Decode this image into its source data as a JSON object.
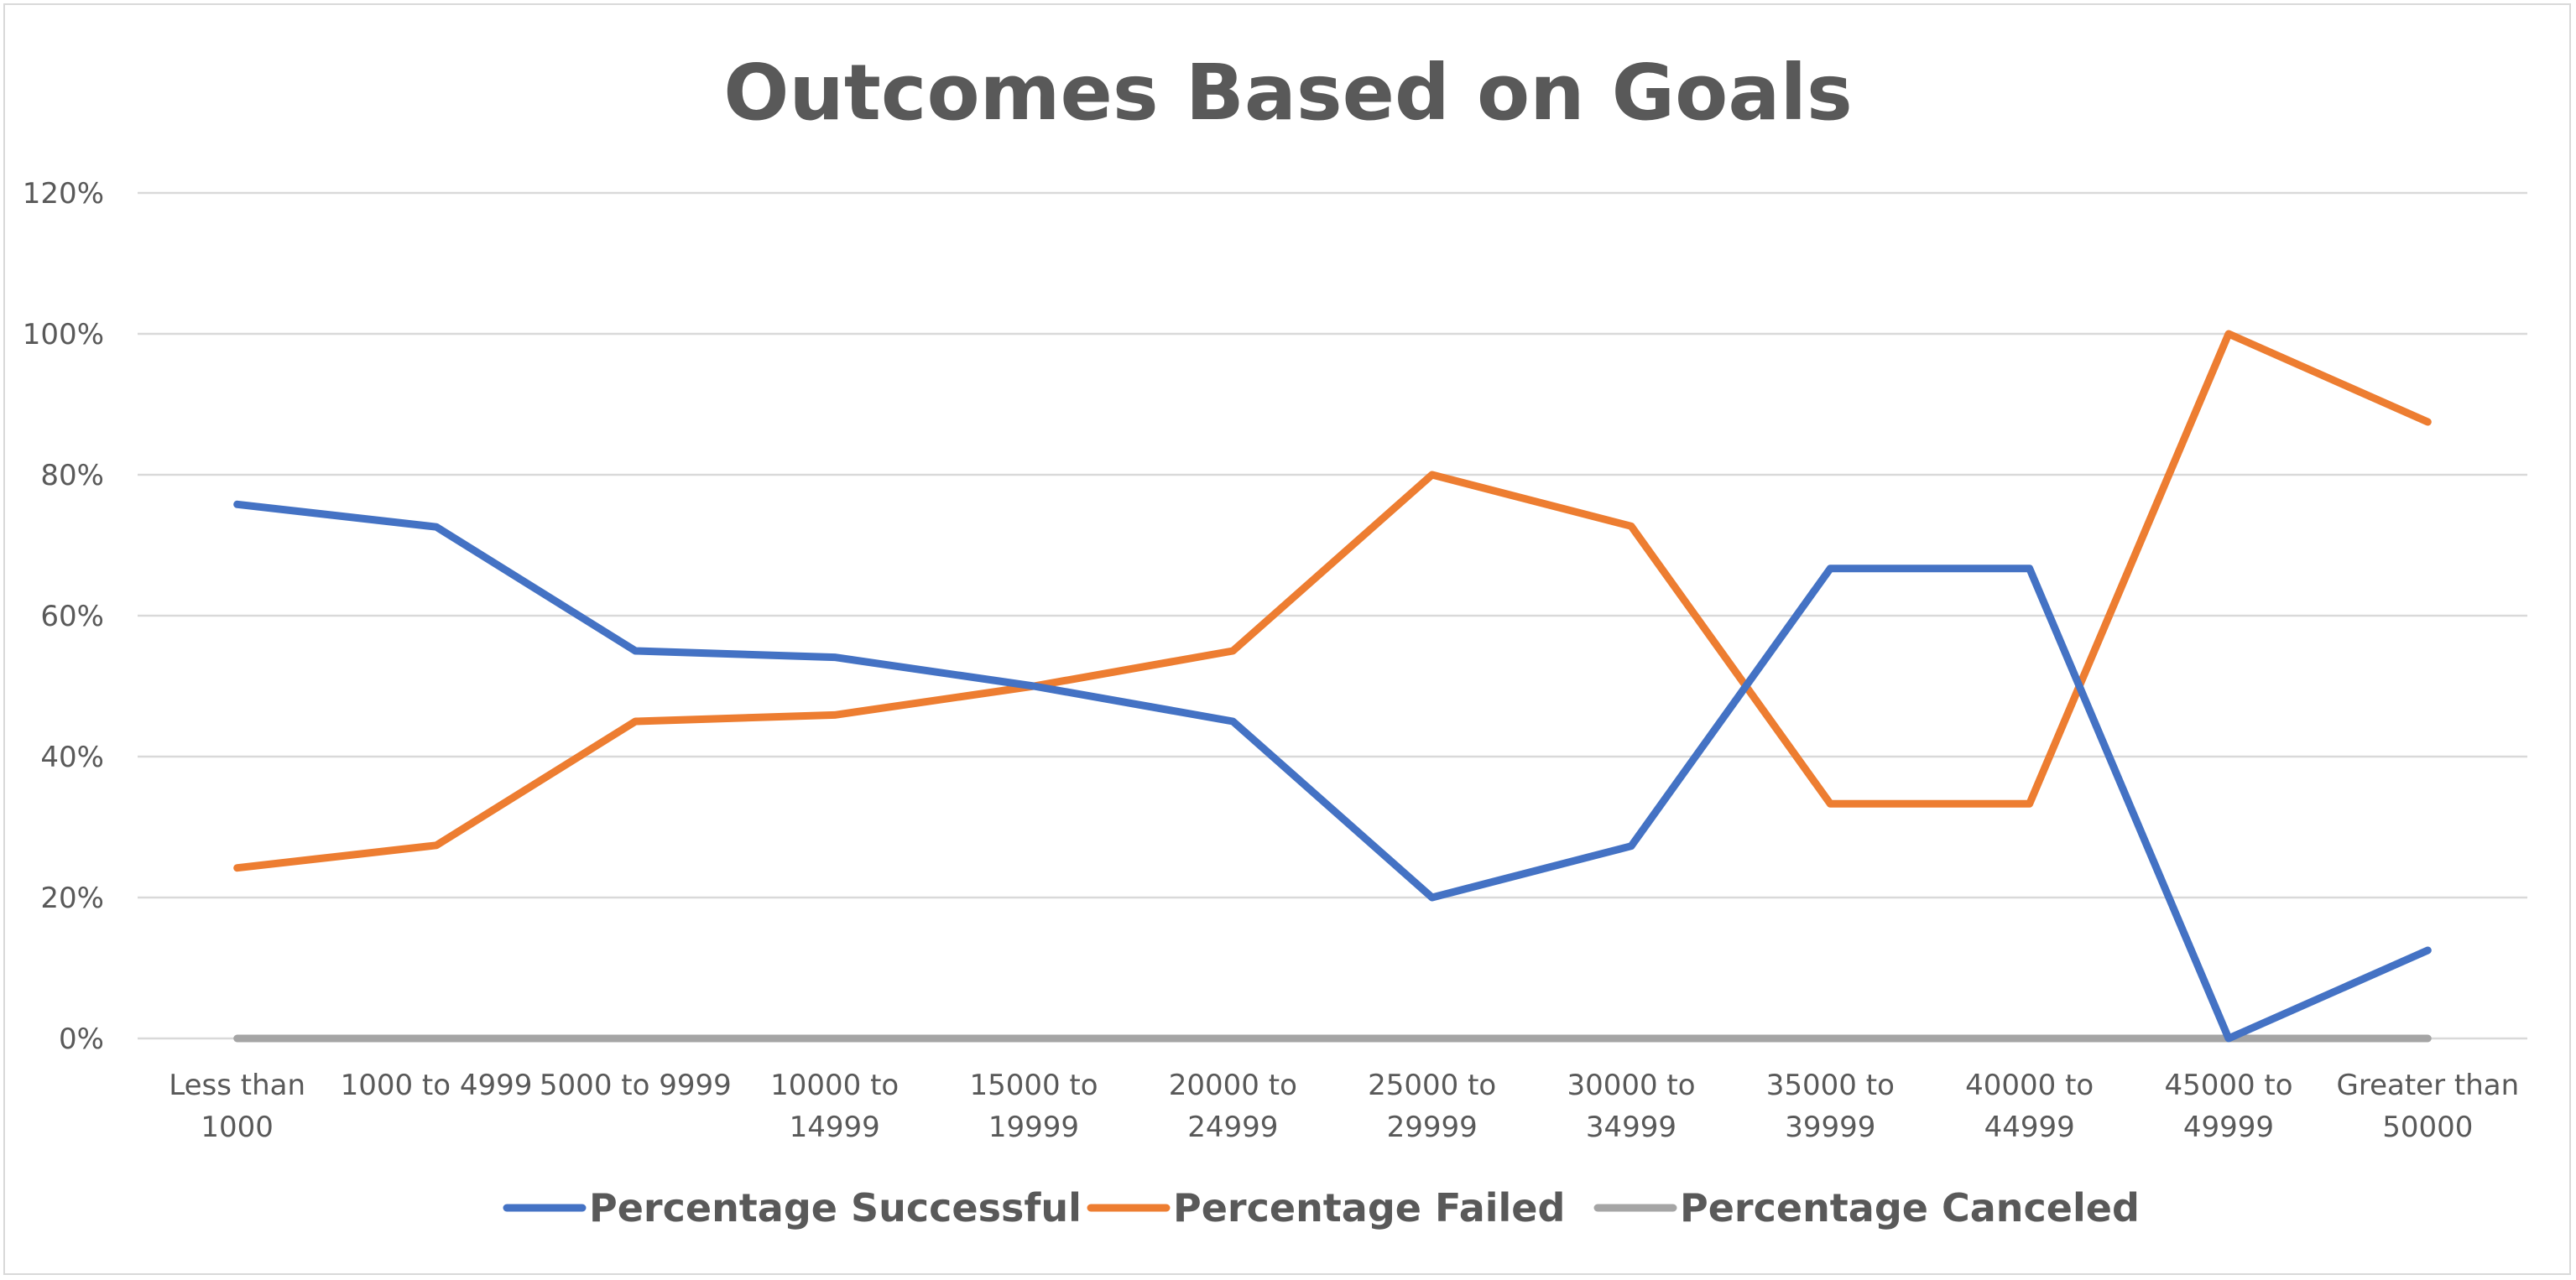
{
  "chart_data": {
    "type": "line",
    "title": "Outcomes Based on Goals",
    "xlabel": "",
    "ylabel": "",
    "categories": [
      [
        "Less than",
        "1000"
      ],
      [
        "1000 to 4999"
      ],
      [
        "5000 to 9999"
      ],
      [
        "10000 to",
        "14999"
      ],
      [
        "15000 to",
        "19999"
      ],
      [
        "20000 to",
        "24999"
      ],
      [
        "25000 to",
        "29999"
      ],
      [
        "30000 to",
        "34999"
      ],
      [
        "35000 to",
        "39999"
      ],
      [
        "40000 to",
        "44999"
      ],
      [
        "45000 to",
        "49999"
      ],
      [
        "Greater than",
        "50000"
      ]
    ],
    "ylim": [
      0,
      1.2
    ],
    "yticks": [
      {
        "value": 0,
        "label": "0%"
      },
      {
        "value": 0.2,
        "label": "20%"
      },
      {
        "value": 0.4,
        "label": "40%"
      },
      {
        "value": 0.6,
        "label": "60%"
      },
      {
        "value": 0.8,
        "label": "80%"
      },
      {
        "value": 1.0,
        "label": "100%"
      },
      {
        "value": 1.2,
        "label": "120%"
      }
    ],
    "grid": true,
    "legend_position": "bottom",
    "series": [
      {
        "name": "Percentage Successful",
        "color": "#4472C4",
        "values": [
          0.758,
          0.726,
          0.55,
          0.541,
          0.5,
          0.45,
          0.2,
          0.273,
          0.667,
          0.667,
          0.0,
          0.125
        ]
      },
      {
        "name": "Percentage Failed",
        "color": "#ED7D31",
        "values": [
          0.242,
          0.274,
          0.45,
          0.459,
          0.5,
          0.55,
          0.8,
          0.727,
          0.333,
          0.333,
          1.0,
          0.875
        ]
      },
      {
        "name": "Percentage Canceled",
        "color": "#A5A5A5",
        "values": [
          0,
          0,
          0,
          0,
          0,
          0,
          0,
          0,
          0,
          0,
          0,
          0
        ]
      }
    ]
  }
}
